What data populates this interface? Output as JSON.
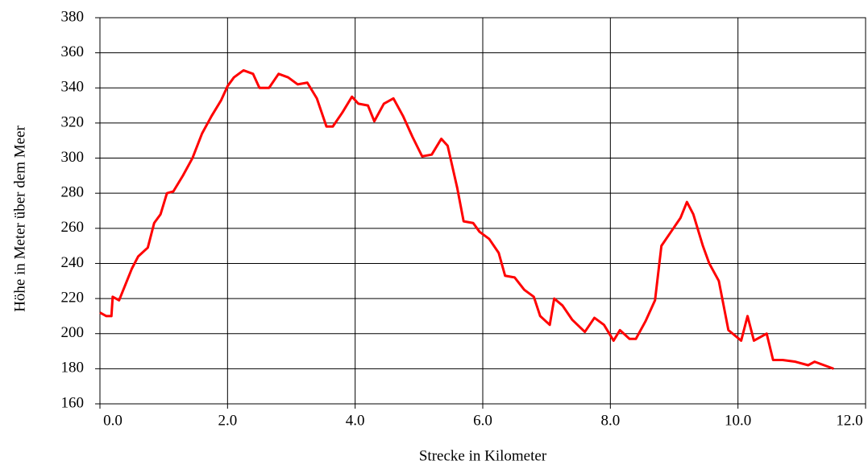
{
  "chart_data": {
    "type": "line",
    "xlabel": "Strecke in Kilometer",
    "ylabel": "Höhe in Meter über dem Meer",
    "x": [
      0.0,
      0.1,
      0.18,
      0.2,
      0.3,
      0.4,
      0.5,
      0.6,
      0.75,
      0.85,
      0.95,
      1.05,
      1.15,
      1.3,
      1.45,
      1.6,
      1.75,
      1.9,
      2.0,
      2.1,
      2.25,
      2.4,
      2.5,
      2.65,
      2.8,
      2.95,
      3.1,
      3.25,
      3.4,
      3.55,
      3.65,
      3.8,
      3.95,
      4.05,
      4.2,
      4.3,
      4.45,
      4.6,
      4.75,
      4.9,
      5.05,
      5.2,
      5.35,
      5.45,
      5.6,
      5.7,
      5.85,
      5.95,
      6.1,
      6.25,
      6.35,
      6.5,
      6.65,
      6.8,
      6.9,
      7.05,
      7.12,
      7.25,
      7.4,
      7.6,
      7.75,
      7.9,
      8.05,
      8.15,
      8.3,
      8.4,
      8.55,
      8.7,
      8.8,
      8.95,
      9.1,
      9.2,
      9.3,
      9.45,
      9.55,
      9.7,
      9.85,
      10.05,
      10.15,
      10.25,
      10.35,
      10.45,
      10.55,
      10.7,
      10.9,
      11.1,
      11.2,
      11.35,
      11.5
    ],
    "series": [
      {
        "name": "Höhe",
        "color": "#ff0000",
        "values": [
          212,
          210,
          210,
          221,
          219,
          228,
          237,
          244,
          249,
          263,
          268,
          280,
          281,
          290,
          300,
          314,
          324,
          333,
          341,
          346,
          350,
          348,
          340,
          340,
          348,
          346,
          342,
          343,
          334,
          318,
          318,
          326,
          335,
          331,
          330,
          321,
          331,
          334,
          324,
          312,
          301,
          302,
          311,
          307,
          283,
          264,
          263,
          258,
          254,
          246,
          233,
          232,
          225,
          221,
          210,
          205,
          220,
          216,
          208,
          201,
          209,
          205,
          196,
          202,
          197,
          197,
          207,
          219,
          250,
          258,
          266,
          275,
          268,
          250,
          240,
          230,
          202,
          196,
          210,
          196,
          198,
          200,
          185,
          185,
          184,
          182,
          184,
          182,
          180
        ]
      }
    ],
    "xlim": [
      0,
      12
    ],
    "xticks": [
      {
        "value": 0,
        "label": "0.0"
      },
      {
        "value": 2,
        "label": "2.0"
      },
      {
        "value": 4,
        "label": "4.0"
      },
      {
        "value": 6,
        "label": "6.0"
      },
      {
        "value": 8,
        "label": "8.0"
      },
      {
        "value": 10,
        "label": "10.0"
      },
      {
        "value": 12,
        "label": "12.0"
      }
    ],
    "ylim": [
      160,
      380
    ],
    "yticks": [
      160,
      180,
      200,
      220,
      240,
      260,
      280,
      300,
      320,
      340,
      360,
      380
    ],
    "grid": true
  }
}
